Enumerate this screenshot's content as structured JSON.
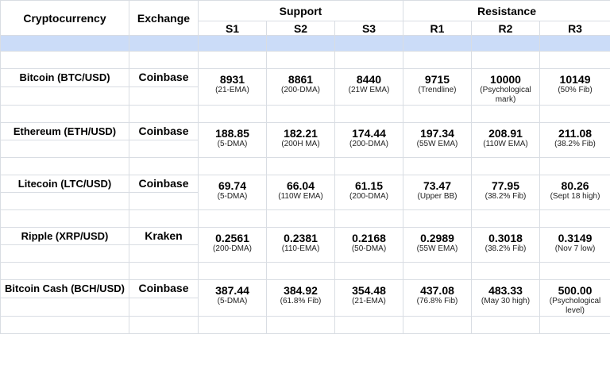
{
  "headers": {
    "crypto": "Cryptocurrency",
    "exchange": "Exchange",
    "support": "Support",
    "resistance": "Resistance",
    "levels": [
      "S1",
      "S2",
      "S3",
      "R1",
      "R2",
      "R3"
    ]
  },
  "rows": [
    {
      "crypto": "Bitcoin (BTC/USD)",
      "exchange": "Coinbase",
      "values": [
        {
          "num": "8931",
          "note": "(21-EMA)"
        },
        {
          "num": "8861",
          "note": "(200-DMA)"
        },
        {
          "num": "8440",
          "note": "(21W EMA)"
        },
        {
          "num": "9715",
          "note": "(Trendline)"
        },
        {
          "num": "10000",
          "note": "(Psychological mark)"
        },
        {
          "num": "10149",
          "note": "(50% Fib)"
        }
      ]
    },
    {
      "crypto": "Ethereum (ETH/USD)",
      "exchange": "Coinbase",
      "values": [
        {
          "num": "188.85",
          "note": "(5-DMA)"
        },
        {
          "num": "182.21",
          "note": "(200H MA)"
        },
        {
          "num": "174.44",
          "note": "(200-DMA)"
        },
        {
          "num": "197.34",
          "note": "(55W EMA)"
        },
        {
          "num": "208.91",
          "note": "(110W EMA)"
        },
        {
          "num": "211.08",
          "note": "(38.2% Fib)"
        }
      ]
    },
    {
      "crypto": "Litecoin (LTC/USD)",
      "exchange": "Coinbase",
      "values": [
        {
          "num": "69.74",
          "note": "(5-DMA)"
        },
        {
          "num": "66.04",
          "note": "(110W EMA)"
        },
        {
          "num": "61.15",
          "note": "(200-DMA)"
        },
        {
          "num": "73.47",
          "note": "(Upper BB)"
        },
        {
          "num": "77.95",
          "note": "(38.2% Fib)"
        },
        {
          "num": "80.26",
          "note": "(Sept 18 high)"
        }
      ]
    },
    {
      "crypto": "Ripple (XRP/USD)",
      "exchange": "Kraken",
      "values": [
        {
          "num": "0.2561",
          "note": "(200-DMA)"
        },
        {
          "num": "0.2381",
          "note": "(110-EMA)"
        },
        {
          "num": "0.2168",
          "note": "(50-DMA)"
        },
        {
          "num": "0.2989",
          "note": "(55W EMA)"
        },
        {
          "num": "0.3018",
          "note": "(38.2% Fib)"
        },
        {
          "num": "0.3149",
          "note": "(Nov 7 low)"
        }
      ]
    },
    {
      "crypto": "Bitcoin Cash (BCH/USD)",
      "exchange": "Coinbase",
      "values": [
        {
          "num": "387.44",
          "note": "(5-DMA)"
        },
        {
          "num": "384.92",
          "note": "(61.8% Fib)"
        },
        {
          "num": "354.48",
          "note": "(21-EMA)"
        },
        {
          "num": "437.08",
          "note": "(76.8% Fib)"
        },
        {
          "num": "483.33",
          "note": "(May 30 high)"
        },
        {
          "num": "500.00",
          "note": "(Psychological level)"
        }
      ]
    }
  ]
}
